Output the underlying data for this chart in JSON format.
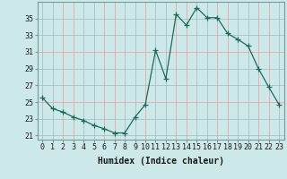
{
  "x": [
    0,
    1,
    2,
    3,
    4,
    5,
    6,
    7,
    8,
    9,
    10,
    11,
    12,
    13,
    14,
    15,
    16,
    17,
    18,
    19,
    20,
    21,
    22,
    23
  ],
  "y": [
    25.5,
    24.2,
    23.8,
    23.2,
    22.8,
    22.2,
    21.8,
    21.3,
    21.3,
    23.2,
    24.7,
    31.2,
    27.8,
    35.5,
    34.2,
    36.3,
    35.1,
    35.1,
    33.2,
    32.5,
    31.7,
    29.0,
    26.8,
    24.7
  ],
  "line_color": "#1a6b5a",
  "marker": "+",
  "marker_size": 4,
  "bg_color": "#cce8e8",
  "grid_color_v": "#c8a8a8",
  "grid_color_h": "#c8a8a8",
  "xlabel": "Humidex (Indice chaleur)",
  "xlim": [
    -0.5,
    23.5
  ],
  "ylim": [
    20.5,
    37.0
  ],
  "yticks": [
    21,
    23,
    25,
    27,
    29,
    31,
    33,
    35
  ],
  "xticks": [
    0,
    1,
    2,
    3,
    4,
    5,
    6,
    7,
    8,
    9,
    10,
    11,
    12,
    13,
    14,
    15,
    16,
    17,
    18,
    19,
    20,
    21,
    22,
    23
  ],
  "xtick_labels": [
    "0",
    "1",
    "2",
    "3",
    "4",
    "5",
    "6",
    "7",
    "8",
    "9",
    "10",
    "11",
    "12",
    "13",
    "14",
    "15",
    "16",
    "17",
    "18",
    "19",
    "20",
    "21",
    "22",
    "23"
  ],
  "label_fontsize": 7,
  "tick_fontsize": 6
}
